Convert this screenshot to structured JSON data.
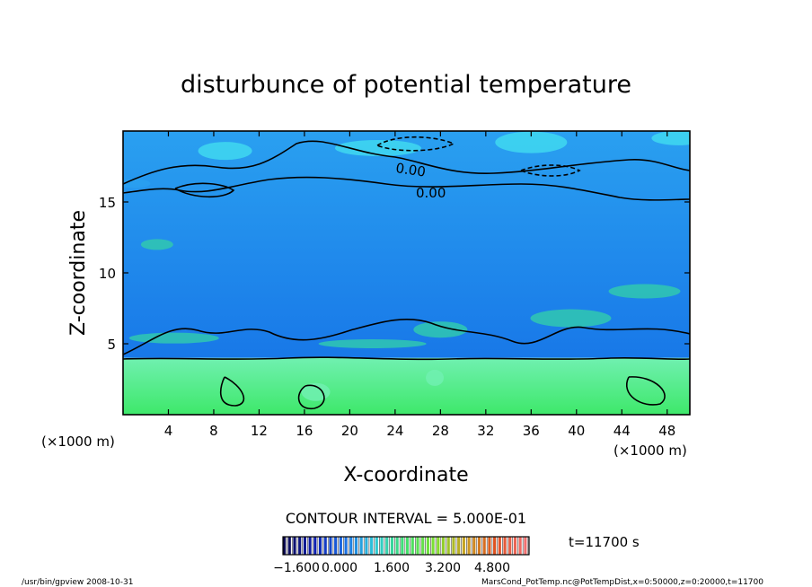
{
  "chart_data": {
    "type": "heatmap",
    "title": "disturbunce of potential temperature",
    "xlabel": "X-coordinate",
    "ylabel": "Z-coordinate",
    "x_unit_left": "(×1000 m)",
    "x_unit_right": "(×1000 m)",
    "xlim": [
      0,
      50
    ],
    "ylim": [
      0,
      20
    ],
    "xticks": [
      4,
      8,
      12,
      16,
      20,
      24,
      28,
      32,
      36,
      40,
      44,
      48
    ],
    "yticks": [
      5,
      10,
      15
    ],
    "contour_interval_text": "CONTOUR INTERVAL = 5.000E-01",
    "contour_labels": [
      "0.00",
      "0.00"
    ],
    "time_text": "t=11700 s",
    "colorbar": {
      "tick_labels": [
        "−1.600",
        "0.000",
        "1.600",
        "3.200",
        "4.800"
      ],
      "range": [
        -3.2,
        6.4
      ],
      "colors": [
        "#0a0a50",
        "#1020b0",
        "#1a6ee6",
        "#2fc8d8",
        "#40e070",
        "#7ee030",
        "#c8a020",
        "#e05020",
        "#f07070"
      ]
    },
    "field_colors": {
      "lower_layer": "#3ee86a",
      "lower_layer_hi": "#70f0b0",
      "upper_layer": "#1878e8",
      "upper_layer_light": "#2aa0f0",
      "top_patches": "#40d8f0",
      "mixing_zone": "#30c8b0"
    },
    "layer_boundary_z": 4.0
  },
  "footer": {
    "left": "/usr/bin/gpview   2008-10-31",
    "right": "MarsCond_PotTemp.nc@PotTempDist,x=0:50000,z=0:20000,t=11700"
  }
}
